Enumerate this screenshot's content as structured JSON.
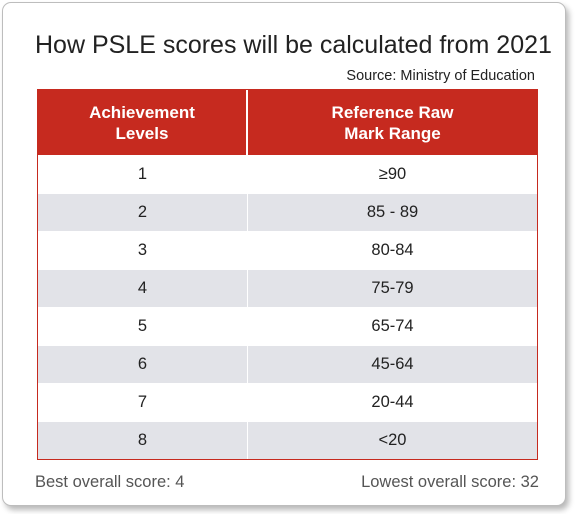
{
  "title": "How PSLE scores will be calculated from 2021",
  "source": "Source: Ministry of Education",
  "table": {
    "headers": [
      [
        "Achievement",
        "Levels"
      ],
      [
        "Reference Raw",
        "Mark Range"
      ]
    ],
    "rows": [
      {
        "level": "1",
        "range": "≥90"
      },
      {
        "level": "2",
        "range": "85 - 89"
      },
      {
        "level": "3",
        "range": "80-84"
      },
      {
        "level": "4",
        "range": "75-79"
      },
      {
        "level": "5",
        "range": "65-74"
      },
      {
        "level": "6",
        "range": "45-64"
      },
      {
        "level": "7",
        "range": "20-44"
      },
      {
        "level": "8",
        "range": "<20"
      }
    ]
  },
  "footer": {
    "best": "Best overall score: 4",
    "lowest": "Lowest overall score: 32"
  },
  "colors": {
    "header_bg": "#c62a1f",
    "stripe": "#e2e3e8"
  }
}
